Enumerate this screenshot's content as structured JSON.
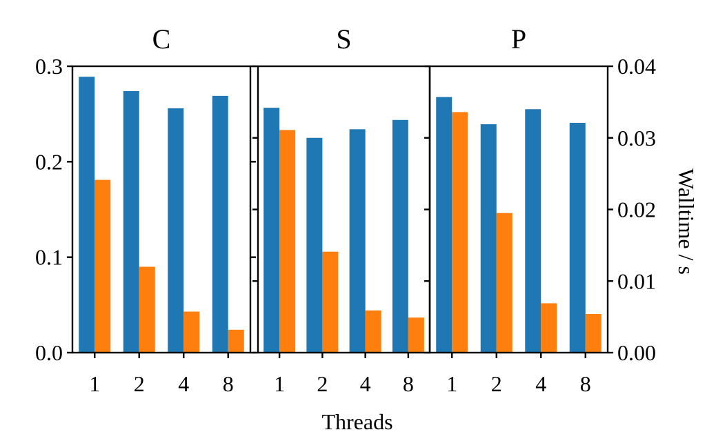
{
  "chart_data": {
    "type": "bar",
    "xlabel": "Threads",
    "categories": [
      "1",
      "2",
      "4",
      "8"
    ],
    "panels": [
      {
        "title": "C",
        "axis": "left",
        "ylim": [
          0,
          0.3
        ],
        "yticks": [
          "0.0",
          "0.1",
          "0.2",
          "0.3"
        ],
        "series": [
          {
            "color": "#1f77b4",
            "values": [
              0.289,
              0.274,
              0.256,
              0.269
            ]
          },
          {
            "color": "#ff7f0e",
            "values": [
              0.181,
              0.09,
              0.043,
              0.024
            ]
          }
        ]
      },
      {
        "title": "S",
        "axis": "none",
        "ylim": [
          0,
          0.04
        ],
        "series": [
          {
            "color": "#1f77b4",
            "values": [
              0.0342,
              0.03,
              0.0312,
              0.0325
            ]
          },
          {
            "color": "#ff7f0e",
            "values": [
              0.0311,
              0.0141,
              0.0059,
              0.0049
            ]
          }
        ]
      },
      {
        "title": "P",
        "axis": "right",
        "ylim": [
          0,
          0.04
        ],
        "yticks": [
          "0.00",
          "0.01",
          "0.02",
          "0.03",
          "0.04"
        ],
        "ylabel": "Walltime / s",
        "series": [
          {
            "color": "#1f77b4",
            "values": [
              0.0357,
              0.0319,
              0.034,
              0.0321
            ]
          },
          {
            "color": "#ff7f0e",
            "values": [
              0.0336,
              0.0195,
              0.0069,
              0.0054
            ]
          }
        ]
      }
    ]
  }
}
